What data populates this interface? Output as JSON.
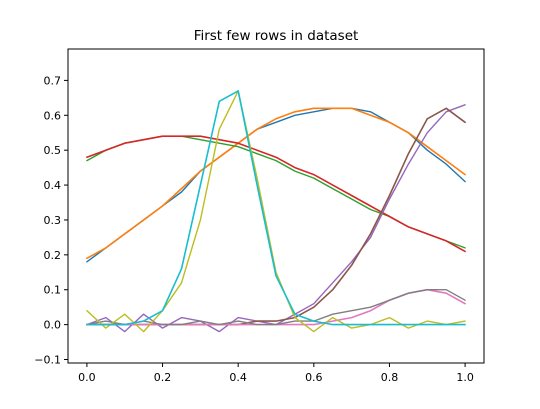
{
  "chart_data": {
    "type": "line",
    "title": "First few rows in dataset",
    "xlabel": "",
    "ylabel": "",
    "xlim": [
      -0.05,
      1.05
    ],
    "ylim": [
      -0.11,
      0.79
    ],
    "x_ticks": [
      "0.0",
      "0.2",
      "0.4",
      "0.6",
      "0.8",
      "1.0"
    ],
    "x_tick_values": [
      0.0,
      0.2,
      0.4,
      0.6,
      0.8,
      1.0
    ],
    "y_ticks": [
      "−0.1",
      "0.0",
      "0.1",
      "0.2",
      "0.3",
      "0.4",
      "0.5",
      "0.6",
      "0.7"
    ],
    "y_tick_values": [
      -0.1,
      0.0,
      0.1,
      0.2,
      0.3,
      0.4,
      0.5,
      0.6,
      0.7
    ],
    "grid": false,
    "legend": "none",
    "x": [
      0.0,
      0.05,
      0.1,
      0.15,
      0.2,
      0.25,
      0.3,
      0.35,
      0.4,
      0.45,
      0.5,
      0.55,
      0.6,
      0.65,
      0.7,
      0.75,
      0.8,
      0.85,
      0.9,
      0.95,
      1.0
    ],
    "series": [
      {
        "color": "#1f77b4",
        "style": "noisy",
        "values": [
          0.18,
          0.22,
          0.26,
          0.3,
          0.34,
          0.38,
          0.44,
          0.48,
          0.52,
          0.56,
          0.58,
          0.6,
          0.61,
          0.62,
          0.62,
          0.61,
          0.58,
          0.55,
          0.5,
          0.46,
          0.41
        ]
      },
      {
        "color": "#ff7f0e",
        "style": "smooth",
        "values": [
          0.19,
          0.22,
          0.26,
          0.3,
          0.34,
          0.39,
          0.44,
          0.48,
          0.52,
          0.56,
          0.59,
          0.61,
          0.62,
          0.62,
          0.62,
          0.6,
          0.58,
          0.55,
          0.51,
          0.47,
          0.43
        ]
      },
      {
        "color": "#2ca02c",
        "style": "noisy",
        "values": [
          0.47,
          0.5,
          0.52,
          0.53,
          0.54,
          0.54,
          0.53,
          0.52,
          0.51,
          0.49,
          0.47,
          0.44,
          0.42,
          0.39,
          0.36,
          0.33,
          0.31,
          0.28,
          0.26,
          0.24,
          0.22
        ]
      },
      {
        "color": "#d62728",
        "style": "smooth",
        "values": [
          0.48,
          0.5,
          0.52,
          0.53,
          0.54,
          0.54,
          0.54,
          0.53,
          0.52,
          0.5,
          0.48,
          0.45,
          0.43,
          0.4,
          0.37,
          0.34,
          0.31,
          0.28,
          0.26,
          0.24,
          0.21
        ]
      },
      {
        "color": "#9467bd",
        "style": "noisy",
        "values": [
          0.0,
          0.02,
          -0.02,
          0.03,
          -0.01,
          0.02,
          0.01,
          -0.02,
          0.02,
          0.01,
          0.0,
          0.03,
          0.06,
          0.12,
          0.18,
          0.25,
          0.36,
          0.46,
          0.55,
          0.61,
          0.63
        ]
      },
      {
        "color": "#8c564b",
        "style": "smooth",
        "values": [
          0.0,
          0.0,
          0.0,
          0.0,
          0.0,
          0.0,
          0.0,
          0.0,
          0.0,
          0.01,
          0.01,
          0.02,
          0.05,
          0.1,
          0.17,
          0.26,
          0.37,
          0.49,
          0.59,
          0.62,
          0.58
        ]
      },
      {
        "color": "#e377c2",
        "style": "smooth",
        "values": [
          0.0,
          0.0,
          0.0,
          0.0,
          0.0,
          0.0,
          0.0,
          0.0,
          0.0,
          0.0,
          0.0,
          0.0,
          0.0,
          0.01,
          0.02,
          0.04,
          0.07,
          0.09,
          0.1,
          0.09,
          0.06
        ]
      },
      {
        "color": "#7f7f7f",
        "style": "noisy",
        "values": [
          0.0,
          0.01,
          0.0,
          0.01,
          0.0,
          0.0,
          0.01,
          0.0,
          0.01,
          0.0,
          0.0,
          0.01,
          0.01,
          0.03,
          0.04,
          0.05,
          0.07,
          0.09,
          0.1,
          0.1,
          0.07
        ]
      },
      {
        "color": "#bcbd22",
        "style": "noisy",
        "values": [
          0.04,
          -0.01,
          0.03,
          -0.02,
          0.04,
          0.12,
          0.3,
          0.56,
          0.67,
          0.42,
          0.15,
          0.02,
          -0.02,
          0.02,
          -0.01,
          0.0,
          0.02,
          -0.01,
          0.01,
          0.0,
          0.01
        ]
      },
      {
        "color": "#17becf",
        "style": "smooth",
        "values": [
          0.0,
          0.0,
          0.0,
          0.01,
          0.04,
          0.16,
          0.4,
          0.64,
          0.67,
          0.4,
          0.14,
          0.03,
          0.01,
          0.0,
          0.0,
          0.0,
          0.0,
          0.0,
          0.0,
          0.0,
          0.0
        ]
      }
    ]
  }
}
